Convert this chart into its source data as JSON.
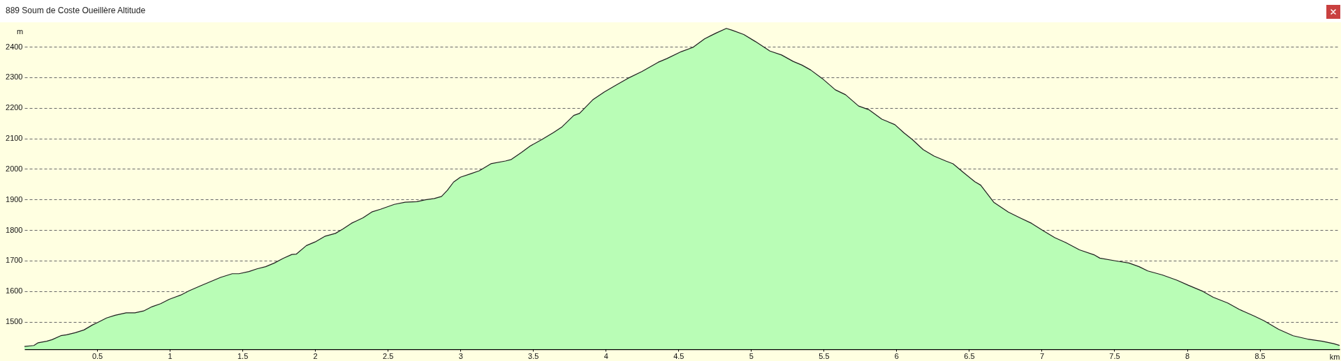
{
  "chart_data": {
    "type": "area",
    "title": "889 Soum de Coste Oueillère Altitude",
    "xlabel": "km",
    "ylabel": "m",
    "color": "#b9fdb6",
    "x": [
      0,
      0.065,
      0.094,
      0.153,
      0.19,
      0.25,
      0.29,
      0.35,
      0.41,
      0.467,
      0.506,
      0.565,
      0.624,
      0.7,
      0.76,
      0.82,
      0.878,
      0.937,
      0.996,
      1.075,
      1.133,
      1.21,
      1.29,
      1.35,
      1.43,
      1.476,
      1.545,
      1.6,
      1.66,
      1.72,
      1.78,
      1.84,
      1.87,
      1.94,
      2.0,
      2.07,
      2.14,
      2.19,
      2.25,
      2.33,
      2.39,
      2.45,
      2.545,
      2.62,
      2.7,
      2.76,
      2.82,
      2.87,
      2.91,
      2.953,
      3.0,
      3.07,
      3.13,
      3.21,
      3.31,
      3.35,
      3.42,
      3.48,
      3.56,
      3.64,
      3.7,
      3.78,
      3.82,
      3.91,
      3.99,
      4.07,
      4.15,
      4.25,
      4.36,
      4.42,
      4.52,
      4.6,
      4.68,
      4.76,
      4.83,
      4.87,
      4.95,
      5.03,
      5.13,
      5.21,
      5.29,
      5.35,
      5.41,
      5.49,
      5.58,
      5.65,
      5.74,
      5.81,
      5.9,
      5.99,
      6.05,
      6.11,
      6.185,
      6.26,
      6.34,
      6.39,
      6.46,
      6.54,
      6.58,
      6.67,
      6.77,
      6.85,
      6.93,
      7.01,
      7.09,
      7.165,
      7.26,
      7.36,
      7.4,
      7.52,
      7.6,
      7.67,
      7.73,
      7.83,
      7.93,
      8.01,
      8.11,
      8.18,
      8.28,
      8.36,
      8.46,
      8.53,
      8.63,
      8.73,
      8.83,
      8.93,
      9.01,
      9.05
    ],
    "values": [
      1419,
      1422,
      1431,
      1436,
      1441,
      1454,
      1457,
      1464,
      1473,
      1489,
      1498,
      1512,
      1521,
      1529,
      1529,
      1535,
      1549,
      1559,
      1573,
      1587,
      1601,
      1617,
      1633,
      1645,
      1657,
      1657,
      1664,
      1673,
      1680,
      1692,
      1707,
      1720,
      1721,
      1749,
      1761,
      1780,
      1789,
      1803,
      1822,
      1840,
      1859,
      1868,
      1884,
      1891,
      1893,
      1899,
      1903,
      1910,
      1930,
      1957,
      1973,
      1984,
      1994,
      2017,
      2026,
      2031,
      2054,
      2075,
      2096,
      2119,
      2138,
      2175,
      2182,
      2226,
      2252,
      2274,
      2296,
      2319,
      2349,
      2361,
      2384,
      2398,
      2426,
      2445,
      2460,
      2454,
      2440,
      2417,
      2386,
      2373,
      2352,
      2340,
      2324,
      2296,
      2259,
      2243,
      2206,
      2194,
      2163,
      2145,
      2119,
      2096,
      2063,
      2042,
      2026,
      2017,
      1989,
      1958,
      1947,
      1891,
      1859,
      1840,
      1822,
      1798,
      1775,
      1759,
      1735,
      1719,
      1708,
      1698,
      1692,
      1680,
      1666,
      1653,
      1636,
      1619,
      1599,
      1580,
      1561,
      1540,
      1519,
      1503,
      1475,
      1454,
      1443,
      1436,
      1428,
      1422
    ],
    "xlim": [
      0,
      9.05
    ],
    "ylim": [
      1410,
      2480
    ],
    "xticks": [
      0.5,
      1,
      1.5,
      2,
      2.5,
      3,
      3.5,
      4,
      4.5,
      5,
      5.5,
      6,
      6.5,
      7,
      7.5,
      8,
      8.5
    ],
    "yticks": [
      1500,
      1600,
      1700,
      1800,
      1900,
      2000,
      2100,
      2200,
      2300,
      2400
    ],
    "grid": "y"
  }
}
